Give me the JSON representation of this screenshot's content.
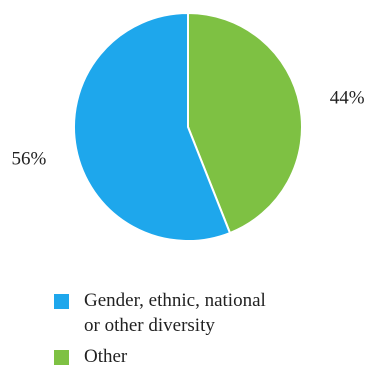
{
  "chart_data": {
    "type": "pie",
    "slices": [
      {
        "label": "Gender, ethnic, national or other diversity",
        "legend_lines": [
          "Gender, ethnic, national",
          "or other diversity"
        ],
        "value": 56,
        "display": "56%",
        "color": "#1ea7ec"
      },
      {
        "label": "Other",
        "legend_lines": [
          "Other"
        ],
        "value": 44,
        "display": "44%",
        "color": "#7ec143"
      }
    ],
    "legend_placement": "bottom"
  }
}
